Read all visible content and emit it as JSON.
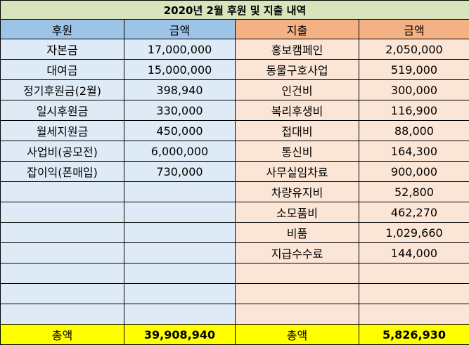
{
  "title": "2020년 2월 후원 및 지출 내역",
  "headers": {
    "income_item": "후원",
    "income_amount": "금액",
    "expense_item": "지출",
    "expense_amount": "금액"
  },
  "rows": [
    {
      "income_item": "자본금",
      "income_amount": "17,000,000",
      "expense_item": "홍보캠페인",
      "expense_amount": "2,050,000"
    },
    {
      "income_item": "대여금",
      "income_amount": "15,000,000",
      "expense_item": "동물구호사업",
      "expense_amount": "519,000"
    },
    {
      "income_item": "정기후원금(2월)",
      "income_amount": "398,940",
      "expense_item": "인건비",
      "expense_amount": "300,000"
    },
    {
      "income_item": "일시후원금",
      "income_amount": "330,000",
      "expense_item": "복리후생비",
      "expense_amount": "116,900"
    },
    {
      "income_item": "월세지원금",
      "income_amount": "450,000",
      "expense_item": "접대비",
      "expense_amount": "88,000"
    },
    {
      "income_item": "사업비(공모전)",
      "income_amount": "6,000,000",
      "expense_item": "통신비",
      "expense_amount": "164,300"
    },
    {
      "income_item": "잡이익(폰매입)",
      "income_amount": "730,000",
      "expense_item": "사무실임차료",
      "expense_amount": "900,000"
    },
    {
      "income_item": "",
      "income_amount": "",
      "expense_item": "차량유지비",
      "expense_amount": "52,800"
    },
    {
      "income_item": "",
      "income_amount": "",
      "expense_item": "소모품비",
      "expense_amount": "462,270"
    },
    {
      "income_item": "",
      "income_amount": "",
      "expense_item": "비품",
      "expense_amount": "1,029,660"
    },
    {
      "income_item": "",
      "income_amount": "",
      "expense_item": "지급수수료",
      "expense_amount": "144,000"
    },
    {
      "income_item": "",
      "income_amount": "",
      "expense_item": "",
      "expense_amount": ""
    },
    {
      "income_item": "",
      "income_amount": "",
      "expense_item": "",
      "expense_amount": ""
    },
    {
      "income_item": "",
      "income_amount": "",
      "expense_item": "",
      "expense_amount": ""
    }
  ],
  "totals": {
    "income_label": "총액",
    "income_amount": "39,908,940",
    "expense_label": "총액",
    "expense_amount": "5,826,930"
  }
}
